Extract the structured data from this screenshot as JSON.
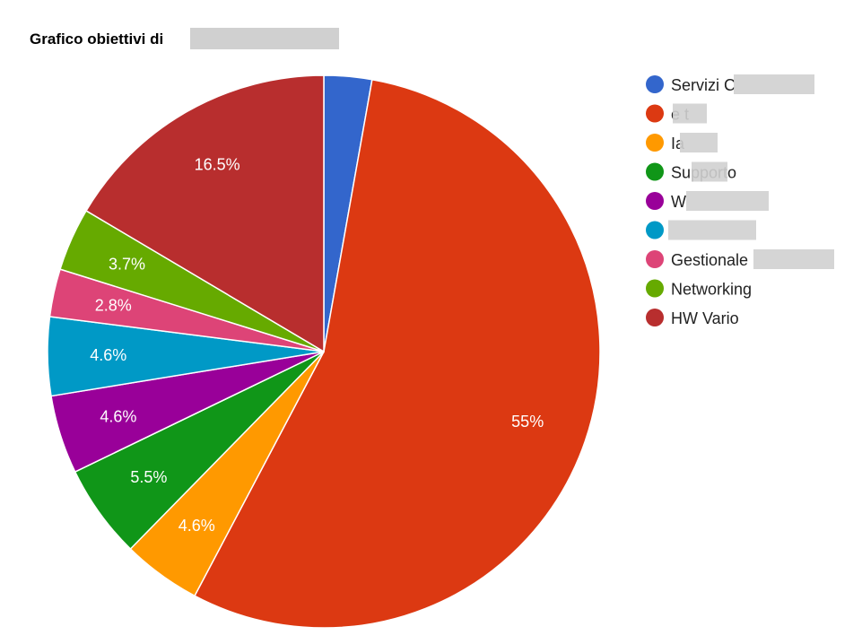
{
  "chart_data": {
    "type": "pie",
    "title": "Grafico obiettivi di",
    "legend_position": "right",
    "series": [
      {
        "name": "Servizi C",
        "value": 2.8,
        "label": "",
        "color": "#3366cc"
      },
      {
        "name": "e t",
        "value": 55,
        "label": "55%",
        "color": "#dc3912"
      },
      {
        "name": "Ia",
        "value": 4.6,
        "label": "4.6%",
        "color": "#ff9900"
      },
      {
        "name": "Supporto",
        "value": 5.5,
        "label": "5.5%",
        "color": "#109618"
      },
      {
        "name": "W",
        "value": 4.6,
        "label": "4.6%",
        "color": "#990099"
      },
      {
        "name": "",
        "value": 4.6,
        "label": "4.6%",
        "color": "#0099c6"
      },
      {
        "name": "Gestionale",
        "value": 2.8,
        "label": "2.8%",
        "color": "#dd4477"
      },
      {
        "name": "Networking",
        "value": 3.7,
        "label": "3.7%",
        "color": "#66aa00"
      },
      {
        "name": "HW Vario",
        "value": 16.5,
        "label": "16.5%",
        "color": "#b82e2e"
      }
    ]
  }
}
